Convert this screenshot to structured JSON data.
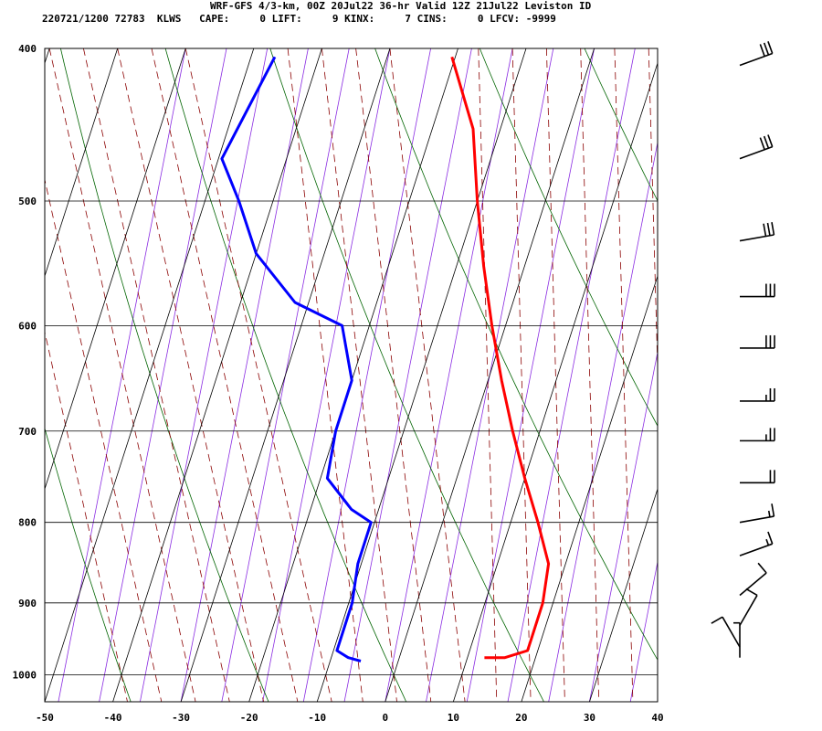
{
  "header": {
    "title": "WRF-GFS 4/3-km, 00Z 20Jul22 36-hr Valid 12Z 21Jul22 Leviston ID",
    "station_line": "220721/1200 72783  KLWS   CAPE:     0 LIFT:     9 KINX:     7 CINS:     0 LFCV: -9999"
  },
  "chart_data": {
    "type": "line",
    "title": "WRF-GFS 4/3-km, 00Z 20Jul22 36-hr Valid 12Z 21Jul22 Leviston ID",
    "xlabel": "",
    "ylabel": "",
    "x_axis": {
      "ticks": [
        -50,
        -40,
        -30,
        -20,
        -10,
        0,
        10,
        20,
        30,
        40
      ],
      "range": [
        -50,
        40
      ]
    },
    "y_axis": {
      "scale": "log-pressure",
      "ticks": [
        400,
        500,
        600,
        700,
        800,
        900,
        1000
      ],
      "range": [
        400,
        1040
      ]
    },
    "grid": true,
    "series": [
      {
        "role": "temperature",
        "color": "#ff0000",
        "points": [
          [
            -20.5,
            405
          ],
          [
            -14,
            450
          ],
          [
            -10,
            500
          ],
          [
            -6,
            550
          ],
          [
            -2,
            600
          ],
          [
            2,
            650
          ],
          [
            6,
            700
          ],
          [
            10,
            750
          ],
          [
            14,
            800
          ],
          [
            17.5,
            850
          ],
          [
            18.5,
            900
          ],
          [
            18.5,
            950
          ],
          [
            18.5,
            965
          ],
          [
            15.5,
            975
          ],
          [
            12.5,
            975
          ]
        ]
      },
      {
        "role": "dewpoint",
        "color": "#0000ff",
        "points": [
          [
            -46.5,
            405
          ],
          [
            -49.5,
            470
          ],
          [
            -45,
            500
          ],
          [
            -40,
            540
          ],
          [
            -32,
            580
          ],
          [
            -24,
            600
          ],
          [
            -20,
            650
          ],
          [
            -20,
            700
          ],
          [
            -19,
            750
          ],
          [
            -14,
            785
          ],
          [
            -10.5,
            800
          ],
          [
            -10.5,
            850
          ],
          [
            -9.5,
            900
          ],
          [
            -9.5,
            965
          ],
          [
            -7.5,
            975
          ],
          [
            -5.5,
            980
          ]
        ]
      }
    ],
    "wind_barbs": [
      {
        "pressure": 410,
        "direction": 250,
        "speed": 30
      },
      {
        "pressure": 470,
        "direction": 250,
        "speed": 30
      },
      {
        "pressure": 530,
        "direction": 260,
        "speed": 30
      },
      {
        "pressure": 575,
        "direction": 270,
        "speed": 30
      },
      {
        "pressure": 620,
        "direction": 270,
        "speed": 30
      },
      {
        "pressure": 670,
        "direction": 270,
        "speed": 25
      },
      {
        "pressure": 710,
        "direction": 270,
        "speed": 25
      },
      {
        "pressure": 755,
        "direction": 270,
        "speed": 20
      },
      {
        "pressure": 800,
        "direction": 260,
        "speed": 15
      },
      {
        "pressure": 840,
        "direction": 250,
        "speed": 15
      },
      {
        "pressure": 890,
        "direction": 230,
        "speed": 10
      },
      {
        "pressure": 930,
        "direction": 210,
        "speed": 10
      },
      {
        "pressure": 960,
        "direction": 150,
        "speed": 10
      },
      {
        "pressure": 975,
        "direction": 180,
        "speed": 5
      }
    ],
    "background_lines": {
      "isotherm_color": "#000000",
      "isobar_color": "#000000",
      "dry_adiabat_color": "#006400",
      "moist_adiabat_color": "#8b0000",
      "mixing_ratio_color": "#8a2be2"
    }
  }
}
